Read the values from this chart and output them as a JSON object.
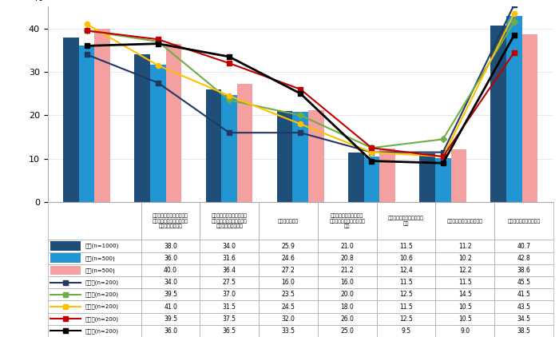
{
  "categories": [
    "リユース（再利用、使用済\n製品やその部品等を繰り返\nし使用すること）",
    "リサイクル（廃棄物等を原\n材料やエネルギー源として\n有効利用すること）",
    "リペア（修理）",
    "レトロ（古さやノスタル\nジーを感じさせる事物のこ\nと）",
    "リダクション（削減するこ\nと）",
    "リスキリング（学び直し）",
    "どれも興味・関心がない"
  ],
  "bar_zentai": [
    38.0,
    34.0,
    25.9,
    21.0,
    11.5,
    11.2,
    40.7
  ],
  "bar_dansei": [
    36.0,
    31.6,
    24.6,
    20.8,
    10.6,
    10.2,
    42.8
  ],
  "bar_josei": [
    40.0,
    36.4,
    27.2,
    21.2,
    12.4,
    12.2,
    38.6
  ],
  "line_20": [
    34.0,
    27.5,
    16.0,
    16.0,
    11.5,
    11.5,
    45.5
  ],
  "line_30": [
    39.5,
    37.0,
    23.5,
    20.0,
    12.5,
    14.5,
    41.5
  ],
  "line_40": [
    41.0,
    31.5,
    24.5,
    18.0,
    11.5,
    10.5,
    43.5
  ],
  "line_50": [
    39.5,
    37.5,
    32.0,
    26.0,
    12.5,
    10.5,
    34.5
  ],
  "line_60": [
    36.0,
    36.5,
    33.5,
    25.0,
    9.5,
    9.0,
    38.5
  ],
  "color_zentai": "#1f4e79",
  "color_dansei": "#2196d3",
  "color_josei": "#f4a0a0",
  "color_20": "#1f3864",
  "color_30": "#70ad47",
  "color_40": "#ffc000",
  "color_50": "#c00000",
  "color_60": "#000000",
  "ylabel": "%",
  "ylim": [
    0,
    45
  ],
  "yticks": [
    0,
    10,
    20,
    30,
    40
  ],
  "table_rows": [
    [
      "全体(n=1000)",
      "38.0",
      "34.0",
      "25.9",
      "21.0",
      "11.5",
      "11.2",
      "40.7"
    ],
    [
      "男性(n=500)",
      "36.0",
      "31.6",
      "24.6",
      "20.8",
      "10.6",
      "10.2",
      "42.8"
    ],
    [
      "女性(n=500)",
      "40.0",
      "36.4",
      "27.2",
      "21.2",
      "12.4",
      "12.2",
      "38.6"
    ],
    [
      "２０代(n=200)",
      "34.0",
      "27.5",
      "16.0",
      "16.0",
      "11.5",
      "11.5",
      "45.5"
    ],
    [
      "３０代(n=200)",
      "39.5",
      "37.0",
      "23.5",
      "20.0",
      "12.5",
      "14.5",
      "41.5"
    ],
    [
      "４０代(n=200)",
      "41.0",
      "31.5",
      "24.5",
      "18.0",
      "11.5",
      "10.5",
      "43.5"
    ],
    [
      "５０代(n=200)",
      "39.5",
      "37.5",
      "32.0",
      "26.0",
      "12.5",
      "10.5",
      "34.5"
    ],
    [
      "６０代(n=200)",
      "36.0",
      "36.5",
      "33.5",
      "25.0",
      "9.5",
      "9.0",
      "38.5"
    ]
  ],
  "col_headers": [
    "リユース（再利用、使用済\n製品やその部品等を繰り返\nし使用すること）",
    "リサイクル（廃棄物等を原\n材料やエネルギー源として\n有効利用すること）",
    "リペア（修理）",
    "レトロ（古さやノスタル\nジーを感じさせる事物のこ\nと）",
    "リダクション（削減するこ\nと）",
    "リスキリング（学び直し）",
    "どれも興味・関心がない"
  ]
}
